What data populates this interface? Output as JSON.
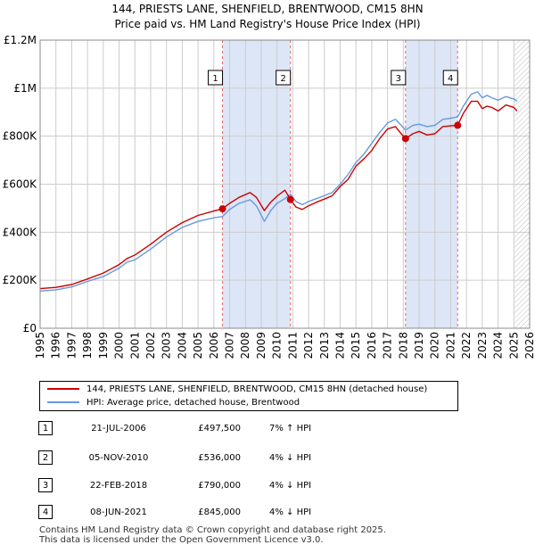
{
  "title": {
    "line1": "144, PRIESTS LANE, SHENFIELD, BRENTWOOD, CM15 8HN",
    "line2": "Price paid vs. HM Land Registry's House Price Index (HPI)"
  },
  "colors": {
    "property": "#cc0000",
    "hpi": "#6699dd",
    "shade": "#dde6f7",
    "marker_line": "#ee6666",
    "grid": "#cccccc"
  },
  "chart_data": {
    "type": "line",
    "title": "144, PRIESTS LANE, SHENFIELD, BRENTWOOD, CM15 8HN — Price paid vs. HM Land Registry's House Price Index (HPI)",
    "xlabel": "",
    "ylabel": "",
    "xlim": [
      1995,
      2026
    ],
    "ylim": [
      0,
      1200000
    ],
    "grid": true,
    "x_tick_labels": [
      "1995",
      "1996",
      "1997",
      "1998",
      "1999",
      "2000",
      "2001",
      "2002",
      "2003",
      "2004",
      "2005",
      "2006",
      "2007",
      "2008",
      "2009",
      "2010",
      "2011",
      "2012",
      "2013",
      "2014",
      "2015",
      "2016",
      "2017",
      "2018",
      "2019",
      "2020",
      "2021",
      "2022",
      "2023",
      "2024",
      "2025",
      "2026"
    ],
    "y_ticks": [
      {
        "value": 0,
        "label": "£0"
      },
      {
        "value": 200000,
        "label": "£200K"
      },
      {
        "value": 400000,
        "label": "£400K"
      },
      {
        "value": 600000,
        "label": "£600K"
      },
      {
        "value": 800000,
        "label": "£800K"
      },
      {
        "value": 1000000,
        "label": "£1M"
      },
      {
        "value": 1200000,
        "label": "£1.2M"
      }
    ],
    "shaded_ranges": [
      [
        2006.55,
        2010.85
      ],
      [
        2018.14,
        2021.44
      ]
    ],
    "future_hatch_from": 2025.05,
    "series": [
      {
        "name": "144, PRIESTS LANE, SHENFIELD, BRENTWOOD, CM15 8HN (detached house)",
        "color": "#cc0000",
        "x": [
          1995.0,
          1996.0,
          1997.0,
          1998.0,
          1999.0,
          2000.0,
          2000.5,
          2001.0,
          2002.0,
          2003.0,
          2004.0,
          2005.0,
          2006.0,
          2006.55,
          2007.0,
          2007.6,
          2008.3,
          2008.7,
          2009.2,
          2009.6,
          2010.0,
          2010.5,
          2010.85,
          2011.2,
          2011.6,
          2012.0,
          2012.5,
          2013.0,
          2013.5,
          2014.0,
          2014.5,
          2015.0,
          2015.5,
          2016.0,
          2016.5,
          2017.0,
          2017.5,
          2017.8,
          2018.14,
          2018.6,
          2019.0,
          2019.5,
          2020.0,
          2020.5,
          2021.0,
          2021.44,
          2021.8,
          2022.3,
          2022.7,
          2023.0,
          2023.3,
          2023.6,
          2024.0,
          2024.5,
          2025.0,
          2025.2
        ],
        "values": [
          165000,
          170000,
          182000,
          205000,
          230000,
          265000,
          290000,
          305000,
          350000,
          400000,
          440000,
          470000,
          488000,
          497500,
          520000,
          545000,
          565000,
          545000,
          490000,
          525000,
          550000,
          575000,
          536000,
          505000,
          495000,
          510000,
          525000,
          538000,
          552000,
          590000,
          620000,
          675000,
          705000,
          740000,
          790000,
          830000,
          840000,
          815000,
          790000,
          810000,
          820000,
          805000,
          810000,
          840000,
          843000,
          845000,
          895000,
          945000,
          945000,
          915000,
          925000,
          920000,
          905000,
          930000,
          920000,
          905000
        ]
      },
      {
        "name": "HPI: Average price, detached house, Brentwood",
        "color": "#6699dd",
        "x": [
          1995.0,
          1996.0,
          1997.0,
          1998.0,
          1999.0,
          2000.0,
          2000.5,
          2001.0,
          2002.0,
          2003.0,
          2004.0,
          2005.0,
          2006.0,
          2006.55,
          2007.0,
          2007.6,
          2008.3,
          2008.7,
          2009.2,
          2009.6,
          2010.0,
          2010.5,
          2010.85,
          2011.2,
          2011.6,
          2012.0,
          2012.5,
          2013.0,
          2013.5,
          2014.0,
          2014.5,
          2015.0,
          2015.5,
          2016.0,
          2016.5,
          2017.0,
          2017.5,
          2017.8,
          2018.14,
          2018.6,
          2019.0,
          2019.5,
          2020.0,
          2020.5,
          2021.0,
          2021.44,
          2021.8,
          2022.3,
          2022.7,
          2023.0,
          2023.3,
          2023.6,
          2024.0,
          2024.5,
          2025.0,
          2025.2
        ],
        "values": [
          155000,
          160000,
          172000,
          195000,
          215000,
          250000,
          275000,
          285000,
          330000,
          380000,
          420000,
          445000,
          460000,
          465000,
          495000,
          520000,
          535000,
          510000,
          445000,
          490000,
          520000,
          540000,
          558000,
          528000,
          515000,
          528000,
          540000,
          552000,
          565000,
          600000,
          640000,
          690000,
          725000,
          770000,
          815000,
          855000,
          870000,
          850000,
          825000,
          845000,
          850000,
          840000,
          845000,
          870000,
          875000,
          880000,
          925000,
          975000,
          985000,
          960000,
          970000,
          960000,
          950000,
          965000,
          955000,
          945000
        ]
      }
    ],
    "sale_markers": [
      {
        "label": "1",
        "x": 2006.55,
        "price": 497500
      },
      {
        "label": "2",
        "x": 2010.85,
        "price": 536000
      },
      {
        "label": "3",
        "x": 2018.14,
        "price": 790000
      },
      {
        "label": "4",
        "x": 2021.44,
        "price": 845000
      }
    ]
  },
  "legend": {
    "property_label": "144, PRIESTS LANE, SHENFIELD, BRENTWOOD, CM15 8HN (detached house)",
    "hpi_label": "HPI: Average price, detached house, Brentwood"
  },
  "sales": [
    {
      "num": "1",
      "date": "21-JUL-2006",
      "price": "£497,500",
      "hpi": "7% ↑ HPI"
    },
    {
      "num": "2",
      "date": "05-NOV-2010",
      "price": "£536,000",
      "hpi": "4% ↓ HPI"
    },
    {
      "num": "3",
      "date": "22-FEB-2018",
      "price": "£790,000",
      "hpi": "4% ↓ HPI"
    },
    {
      "num": "4",
      "date": "08-JUN-2021",
      "price": "£845,000",
      "hpi": "4% ↓ HPI"
    }
  ],
  "footer": {
    "line1": "Contains HM Land Registry data © Crown copyright and database right 2025.",
    "line2": "This data is licensed under the Open Government Licence v3.0."
  }
}
